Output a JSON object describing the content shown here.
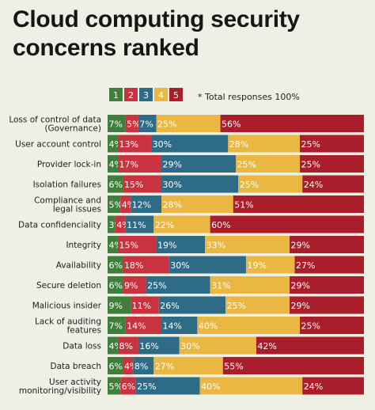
{
  "chart_data": {
    "type": "bar",
    "orientation": "horizontal",
    "stacked": true,
    "title_lines": [
      "Cloud computing security",
      "concerns ranked"
    ],
    "note": "* Total responses 100%",
    "legend": [
      {
        "label": "1",
        "color": "#3f7f3b"
      },
      {
        "label": "2",
        "color": "#c9323f"
      },
      {
        "label": "3",
        "color": "#2e6b86"
      },
      {
        "label": "4",
        "color": "#e9b742"
      },
      {
        "label": "5",
        "color": "#a91e2a"
      }
    ],
    "legend_placement": "top-center",
    "grid": false,
    "xlim": [
      0,
      100
    ],
    "unit_suffix": "%",
    "categories": [
      [
        "Loss of control of data",
        "(Governance)"
      ],
      [
        "User account control"
      ],
      [
        "Provider lock-in"
      ],
      [
        "Isolation failures"
      ],
      [
        "Compliance and",
        "legal issues"
      ],
      [
        "Data confidenciality"
      ],
      [
        "Integrity"
      ],
      [
        "Availability"
      ],
      [
        "Secure deletion"
      ],
      [
        "Malicious insider"
      ],
      [
        "Lack of auditing",
        "features"
      ],
      [
        "Data loss"
      ],
      [
        "Data breach"
      ],
      [
        "User activity",
        "monitoring/visibility"
      ]
    ],
    "values": [
      [
        7,
        5,
        7,
        25,
        56
      ],
      [
        4,
        13,
        30,
        28,
        25
      ],
      [
        4,
        17,
        29,
        25,
        25
      ],
      [
        6,
        15,
        30,
        25,
        24
      ],
      [
        5,
        4,
        12,
        28,
        51
      ],
      [
        3,
        4,
        11,
        22,
        60
      ],
      [
        4,
        15,
        19,
        33,
        29
      ],
      [
        6,
        18,
        30,
        19,
        27
      ],
      [
        6,
        9,
        25,
        31,
        29
      ],
      [
        9,
        11,
        26,
        25,
        29
      ],
      [
        7,
        14,
        14,
        40,
        25
      ],
      [
        4,
        8,
        16,
        30,
        42
      ],
      [
        6,
        4,
        8,
        27,
        55
      ],
      [
        5,
        6,
        25,
        40,
        24
      ]
    ]
  }
}
